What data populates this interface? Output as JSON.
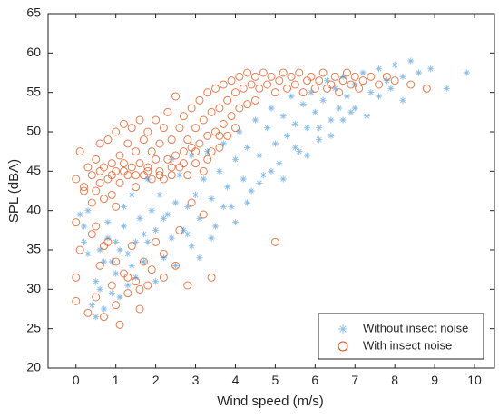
{
  "chart_data": {
    "type": "scatter",
    "title": "",
    "xlabel": "Wind speed (m/s)",
    "ylabel": "SPL (dBA)",
    "xlim": [
      -0.7,
      10.5
    ],
    "ylim": [
      20,
      65
    ],
    "xticks": [
      0,
      1,
      2,
      3,
      4,
      5,
      6,
      7,
      8,
      9,
      10
    ],
    "yticks": [
      20,
      25,
      30,
      35,
      40,
      45,
      50,
      55,
      60,
      65
    ],
    "grid": false,
    "legend_position": "bottom-right",
    "series": [
      {
        "name": "Without insect noise",
        "marker": "asterisk",
        "color": "#3D8FD1",
        "points": [
          [
            0.1,
            39.5
          ],
          [
            0.2,
            36.0
          ],
          [
            0.3,
            34.5
          ],
          [
            0.4,
            28.0
          ],
          [
            0.5,
            26.5
          ],
          [
            0.6,
            30.0
          ],
          [
            0.7,
            33.5
          ],
          [
            0.8,
            36.5
          ],
          [
            0.9,
            29.5
          ],
          [
            1.0,
            32.0
          ],
          [
            1.1,
            35.0
          ],
          [
            1.2,
            38.0
          ],
          [
            1.3,
            30.5
          ],
          [
            1.4,
            33.0
          ],
          [
            1.5,
            36.0
          ],
          [
            1.6,
            39.0
          ],
          [
            1.7,
            33.5
          ],
          [
            1.8,
            36.0
          ],
          [
            1.9,
            40.0
          ],
          [
            2.0,
            37.5
          ],
          [
            2.1,
            42.0
          ],
          [
            2.2,
            34.0
          ],
          [
            2.3,
            39.5
          ],
          [
            2.4,
            36.5
          ],
          [
            2.5,
            41.0
          ],
          [
            2.6,
            44.5
          ],
          [
            2.7,
            37.5
          ],
          [
            2.8,
            40.5
          ],
          [
            2.9,
            35.5
          ],
          [
            3.0,
            42.0
          ],
          [
            3.1,
            39.0
          ],
          [
            3.2,
            44.0
          ],
          [
            3.3,
            47.5
          ],
          [
            3.4,
            41.5
          ],
          [
            3.5,
            38.0
          ],
          [
            3.6,
            45.0
          ],
          [
            3.7,
            48.5
          ],
          [
            3.8,
            43.0
          ],
          [
            3.9,
            40.5
          ],
          [
            4.0,
            46.5
          ],
          [
            4.1,
            50.0
          ],
          [
            4.2,
            44.0
          ],
          [
            4.3,
            48.0
          ],
          [
            4.4,
            42.5
          ],
          [
            4.5,
            51.5
          ],
          [
            4.6,
            47.0
          ],
          [
            4.7,
            44.5
          ],
          [
            4.8,
            50.5
          ],
          [
            4.9,
            53.0
          ],
          [
            5.0,
            48.5
          ],
          [
            5.1,
            46.0
          ],
          [
            5.2,
            52.0
          ],
          [
            5.3,
            49.5
          ],
          [
            5.4,
            54.5
          ],
          [
            5.5,
            51.0
          ],
          [
            5.6,
            47.5
          ],
          [
            5.7,
            53.5
          ],
          [
            5.8,
            50.5
          ],
          [
            5.9,
            55.0
          ],
          [
            6.0,
            52.5
          ],
          [
            6.1,
            49.0
          ],
          [
            6.2,
            54.0
          ],
          [
            6.3,
            56.5
          ],
          [
            6.4,
            51.5
          ],
          [
            6.5,
            55.5
          ],
          [
            6.6,
            53.0
          ],
          [
            6.7,
            57.0
          ],
          [
            6.8,
            54.5
          ],
          [
            6.9,
            52.5
          ],
          [
            7.0,
            56.0
          ],
          [
            7.2,
            57.5
          ],
          [
            7.4,
            55.0
          ],
          [
            7.6,
            58.0
          ],
          [
            7.8,
            56.5
          ],
          [
            8.0,
            58.5
          ],
          [
            8.2,
            57.0
          ],
          [
            8.4,
            59.0
          ],
          [
            8.6,
            57.5
          ],
          [
            8.9,
            58.0
          ],
          [
            9.3,
            55.5
          ],
          [
            9.8,
            57.5
          ],
          [
            0.5,
            31.0
          ],
          [
            0.7,
            27.5
          ],
          [
            0.9,
            33.5
          ],
          [
            1.1,
            29.0
          ],
          [
            1.3,
            34.5
          ],
          [
            1.5,
            31.5
          ],
          [
            1.7,
            37.0
          ],
          [
            2.0,
            31.0
          ],
          [
            2.2,
            39.0
          ],
          [
            2.5,
            33.0
          ],
          [
            2.8,
            37.0
          ],
          [
            3.1,
            34.0
          ],
          [
            3.4,
            36.5
          ],
          [
            3.7,
            40.5
          ],
          [
            4.0,
            38.5
          ],
          [
            4.3,
            41.0
          ],
          [
            4.6,
            43.5
          ],
          [
            4.9,
            45.0
          ],
          [
            5.2,
            44.0
          ],
          [
            5.5,
            48.0
          ],
          [
            5.8,
            47.0
          ],
          [
            6.1,
            50.5
          ],
          [
            6.4,
            49.5
          ],
          [
            6.7,
            51.5
          ],
          [
            7.0,
            53.0
          ],
          [
            7.3,
            52.0
          ],
          [
            7.6,
            54.5
          ],
          [
            7.9,
            55.5
          ],
          [
            8.2,
            54.0
          ],
          [
            0.2,
            38.0
          ],
          [
            0.3,
            40.0
          ],
          [
            0.6,
            35.0
          ],
          [
            0.8,
            38.5
          ],
          [
            1.0,
            36.0
          ],
          [
            1.2,
            40.5
          ],
          [
            1.4,
            42.0
          ],
          [
            1.8,
            44.0
          ],
          [
            2.4,
            46.5
          ],
          [
            2.9,
            47.0
          ]
        ]
      },
      {
        "name": "With insect noise",
        "marker": "circle",
        "color": "#D95319",
        "points": [
          [
            0.0,
            44.0
          ],
          [
            0.0,
            38.5
          ],
          [
            0.0,
            31.5
          ],
          [
            0.0,
            28.5
          ],
          [
            0.1,
            47.5
          ],
          [
            0.1,
            35.0
          ],
          [
            0.2,
            42.5
          ],
          [
            0.3,
            27.0
          ],
          [
            0.4,
            44.5
          ],
          [
            0.4,
            41.0
          ],
          [
            0.5,
            46.5
          ],
          [
            0.5,
            38.0
          ],
          [
            0.5,
            29.0
          ],
          [
            0.6,
            43.5
          ],
          [
            0.6,
            48.5
          ],
          [
            0.6,
            33.0
          ],
          [
            0.7,
            45.5
          ],
          [
            0.7,
            41.5
          ],
          [
            0.7,
            26.5
          ],
          [
            0.8,
            49.0
          ],
          [
            0.8,
            44.0
          ],
          [
            0.8,
            36.0
          ],
          [
            0.9,
            46.0
          ],
          [
            0.9,
            42.0
          ],
          [
            0.9,
            30.5
          ],
          [
            1.0,
            50.0
          ],
          [
            1.0,
            45.0
          ],
          [
            1.0,
            40.5
          ],
          [
            1.0,
            28.0
          ],
          [
            1.1,
            47.0
          ],
          [
            1.1,
            43.5
          ],
          [
            1.1,
            25.5
          ],
          [
            1.2,
            51.0
          ],
          [
            1.2,
            46.0
          ],
          [
            1.2,
            32.0
          ],
          [
            1.3,
            48.5
          ],
          [
            1.3,
            44.5
          ],
          [
            1.3,
            29.5
          ],
          [
            1.4,
            50.5
          ],
          [
            1.4,
            45.5
          ],
          [
            1.4,
            35.5
          ],
          [
            1.5,
            47.5
          ],
          [
            1.5,
            43.0
          ],
          [
            1.5,
            31.0
          ],
          [
            1.6,
            51.5
          ],
          [
            1.6,
            46.0
          ],
          [
            1.6,
            27.5
          ],
          [
            1.7,
            49.0
          ],
          [
            1.7,
            44.5
          ],
          [
            1.7,
            33.5
          ],
          [
            1.8,
            50.0
          ],
          [
            1.8,
            45.5
          ],
          [
            1.8,
            30.5
          ],
          [
            1.9,
            47.5
          ],
          [
            1.9,
            44.0
          ],
          [
            2.0,
            51.5
          ],
          [
            2.0,
            46.5
          ],
          [
            2.0,
            36.0
          ],
          [
            2.1,
            48.5
          ],
          [
            2.1,
            45.0
          ],
          [
            2.2,
            50.5
          ],
          [
            2.2,
            44.0
          ],
          [
            2.2,
            31.5
          ],
          [
            2.3,
            52.5
          ],
          [
            2.3,
            46.5
          ],
          [
            2.4,
            49.0
          ],
          [
            2.4,
            44.5
          ],
          [
            2.5,
            54.5
          ],
          [
            2.5,
            47.0
          ],
          [
            2.5,
            33.0
          ],
          [
            2.6,
            50.5
          ],
          [
            2.6,
            45.5
          ],
          [
            2.7,
            52.0
          ],
          [
            2.7,
            47.5
          ],
          [
            2.8,
            49.0
          ],
          [
            2.8,
            44.5
          ],
          [
            2.8,
            30.5
          ],
          [
            2.9,
            53.0
          ],
          [
            2.9,
            48.0
          ],
          [
            3.0,
            50.5
          ],
          [
            3.0,
            46.0
          ],
          [
            3.1,
            54.0
          ],
          [
            3.1,
            48.5
          ],
          [
            3.2,
            51.5
          ],
          [
            3.2,
            45.0
          ],
          [
            3.3,
            55.0
          ],
          [
            3.3,
            49.5
          ],
          [
            3.4,
            52.5
          ],
          [
            3.4,
            47.5
          ],
          [
            3.4,
            31.5
          ],
          [
            3.5,
            55.5
          ],
          [
            3.5,
            50.0
          ],
          [
            3.6,
            53.0
          ],
          [
            3.6,
            48.0
          ],
          [
            3.7,
            56.0
          ],
          [
            3.7,
            51.0
          ],
          [
            3.8,
            54.0
          ],
          [
            3.8,
            49.5
          ],
          [
            3.9,
            56.5
          ],
          [
            3.9,
            52.0
          ],
          [
            4.0,
            55.0
          ],
          [
            4.0,
            50.5
          ],
          [
            4.1,
            57.0
          ],
          [
            4.1,
            53.0
          ],
          [
            4.2,
            55.5
          ],
          [
            4.3,
            57.5
          ],
          [
            4.3,
            53.5
          ],
          [
            4.4,
            56.0
          ],
          [
            4.5,
            57.0
          ],
          [
            4.5,
            54.0
          ],
          [
            4.6,
            55.5
          ],
          [
            4.7,
            57.5
          ],
          [
            4.8,
            56.0
          ],
          [
            4.9,
            57.0
          ],
          [
            5.0,
            55.0
          ],
          [
            5.0,
            36.0
          ],
          [
            5.1,
            56.5
          ],
          [
            5.2,
            57.5
          ],
          [
            5.3,
            55.5
          ],
          [
            5.4,
            57.0
          ],
          [
            5.5,
            56.0
          ],
          [
            5.6,
            57.5
          ],
          [
            5.7,
            55.0
          ],
          [
            5.8,
            56.5
          ],
          [
            5.9,
            57.0
          ],
          [
            6.0,
            55.5
          ],
          [
            6.1,
            56.5
          ],
          [
            6.2,
            57.5
          ],
          [
            6.3,
            55.5
          ],
          [
            6.4,
            56.0
          ],
          [
            6.5,
            57.0
          ],
          [
            6.6,
            55.0
          ],
          [
            6.7,
            56.5
          ],
          [
            6.8,
            57.5
          ],
          [
            6.9,
            56.0
          ],
          [
            7.0,
            57.0
          ],
          [
            7.1,
            55.5
          ],
          [
            7.2,
            56.5
          ],
          [
            7.4,
            57.0
          ],
          [
            7.6,
            56.0
          ],
          [
            7.8,
            57.0
          ],
          [
            8.0,
            56.5
          ],
          [
            8.4,
            56.0
          ],
          [
            8.8,
            55.5
          ],
          [
            0.3,
            45.5
          ],
          [
            0.6,
            45.0
          ],
          [
            0.9,
            44.5
          ],
          [
            1.2,
            45.0
          ],
          [
            1.5,
            44.5
          ],
          [
            1.8,
            45.0
          ],
          [
            2.1,
            44.5
          ],
          [
            2.4,
            45.5
          ],
          [
            2.7,
            46.0
          ],
          [
            3.0,
            47.5
          ],
          [
            3.3,
            46.5
          ],
          [
            3.6,
            49.5
          ],
          [
            0.4,
            37.0
          ],
          [
            0.7,
            35.5
          ],
          [
            1.0,
            33.5
          ],
          [
            1.3,
            31.5
          ],
          [
            1.6,
            30.0
          ],
          [
            1.9,
            32.5
          ],
          [
            2.2,
            34.5
          ],
          [
            2.6,
            37.5
          ],
          [
            2.9,
            41.0
          ],
          [
            3.2,
            39.5
          ],
          [
            0.2,
            43.0
          ],
          [
            0.5,
            42.5
          ]
        ]
      }
    ]
  }
}
